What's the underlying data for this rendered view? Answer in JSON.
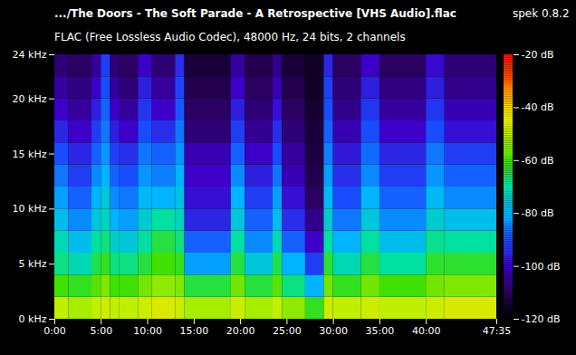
{
  "chart_data": {
    "type": "heatmap",
    "title": ".../The Doors - The Soft Parade - A Retrospective [VHS Audio].flac",
    "annotation": "spek 0.8.2",
    "subtitle": "FLAC (Free Lossless Audio Codec), 48000 Hz, 24 bits, 2 channels",
    "xlim": [
      0,
      2855
    ],
    "xticks": [
      {
        "value": 0,
        "label": "0:00"
      },
      {
        "value": 300,
        "label": "5:00"
      },
      {
        "value": 600,
        "label": "10:00"
      },
      {
        "value": 900,
        "label": "15:00"
      },
      {
        "value": 1200,
        "label": "20:00"
      },
      {
        "value": 1500,
        "label": "25:00"
      },
      {
        "value": 1800,
        "label": "30:00"
      },
      {
        "value": 2100,
        "label": "35:00"
      },
      {
        "value": 2400,
        "label": "40:00"
      },
      {
        "value": 2855,
        "label": "47:35"
      }
    ],
    "ylim": [
      0,
      24
    ],
    "yticks": [
      {
        "value": 0,
        "label": "0 kHz"
      },
      {
        "value": 5,
        "label": "5 kHz"
      },
      {
        "value": 10,
        "label": "10 kHz"
      },
      {
        "value": 15,
        "label": "15 kHz"
      },
      {
        "value": 20,
        "label": "20 kHz"
      },
      {
        "value": 24,
        "label": "24 kHz"
      }
    ],
    "x_edges": [
      0,
      90,
      240,
      300,
      360,
      420,
      540,
      630,
      780,
      840,
      1140,
      1230,
      1410,
      1470,
      1620,
      1740,
      1800,
      1980,
      2100,
      2400,
      2520,
      2855
    ],
    "y_edges": [
      0,
      2,
      4,
      6,
      8,
      10,
      12,
      14,
      16,
      18,
      20,
      22,
      24
    ],
    "z": [
      [
        -50,
        -60,
        -68,
        -72,
        -78,
        -82,
        -86,
        -90,
        -95,
        -100,
        -104,
        -108
      ],
      [
        -52,
        -62,
        -72,
        -78,
        -84,
        -88,
        -92,
        -95,
        -100,
        -104,
        -107,
        -110
      ],
      [
        -50,
        -58,
        -65,
        -70,
        -76,
        -80,
        -84,
        -88,
        -92,
        -96,
        -100,
        -104
      ],
      [
        -48,
        -55,
        -62,
        -68,
        -73,
        -76,
        -80,
        -83,
        -86,
        -88,
        -90,
        -92
      ],
      [
        -50,
        -60,
        -68,
        -74,
        -80,
        -84,
        -88,
        -92,
        -96,
        -100,
        -104,
        -108
      ],
      [
        -50,
        -60,
        -68,
        -76,
        -82,
        -86,
        -90,
        -94,
        -100,
        -104,
        -108,
        -110
      ],
      [
        -48,
        -56,
        -64,
        -70,
        -75,
        -79,
        -83,
        -86,
        -90,
        -93,
        -96,
        -100
      ],
      [
        -46,
        -54,
        -60,
        -64,
        -70,
        -80,
        -85,
        -88,
        -94,
        -100,
        -104,
        -108
      ],
      [
        -48,
        -55,
        -62,
        -68,
        -73,
        -77,
        -80,
        -83,
        -86,
        -89,
        -91,
        -94
      ],
      [
        -52,
        -64,
        -82,
        -88,
        -95,
        -98,
        -100,
        -102,
        -108,
        -110,
        -112,
        -114
      ],
      [
        -48,
        -56,
        -64,
        -70,
        -76,
        -80,
        -84,
        -88,
        -92,
        -96,
        -100,
        -104
      ],
      [
        -52,
        -64,
        -76,
        -84,
        -88,
        -92,
        -96,
        -100,
        -105,
        -108,
        -110,
        -112
      ],
      [
        -50,
        -58,
        -65,
        -72,
        -78,
        -82,
        -86,
        -90,
        -94,
        -98,
        -102,
        -106
      ],
      [
        -54,
        -68,
        -80,
        -88,
        -94,
        -98,
        -102,
        -104,
        -108,
        -110,
        -112,
        -114
      ],
      [
        -62,
        -80,
        -92,
        -100,
        -106,
        -110,
        -112,
        -113,
        -114,
        -115,
        -116,
        -116
      ],
      [
        -48,
        -56,
        -63,
        -70,
        -75,
        -79,
        -82,
        -85,
        -88,
        -90,
        -92,
        -95
      ],
      [
        -50,
        -62,
        -72,
        -80,
        -86,
        -90,
        -94,
        -97,
        -102,
        -106,
        -108,
        -110
      ],
      [
        -48,
        -56,
        -64,
        -70,
        -76,
        -80,
        -84,
        -87,
        -90,
        -93,
        -96,
        -100
      ],
      [
        -50,
        -60,
        -70,
        -78,
        -84,
        -88,
        -92,
        -95,
        -100,
        -104,
        -107,
        -110
      ],
      [
        -48,
        -56,
        -63,
        -69,
        -75,
        -79,
        -83,
        -86,
        -90,
        -93,
        -96,
        -99
      ],
      [
        -46,
        -55,
        -63,
        -70,
        -78,
        -84,
        -88,
        -92,
        -98,
        -102,
        -106,
        -108
      ]
    ],
    "zlim": [
      -120,
      -20
    ],
    "zticks": [
      {
        "value": -20,
        "label": "-20 dB"
      },
      {
        "value": -40,
        "label": "-40 dB"
      },
      {
        "value": -60,
        "label": "-60 dB"
      },
      {
        "value": -80,
        "label": "-80 dB"
      },
      {
        "value": -100,
        "label": "-100 dB"
      },
      {
        "value": -120,
        "label": "-120 dB"
      }
    ]
  }
}
